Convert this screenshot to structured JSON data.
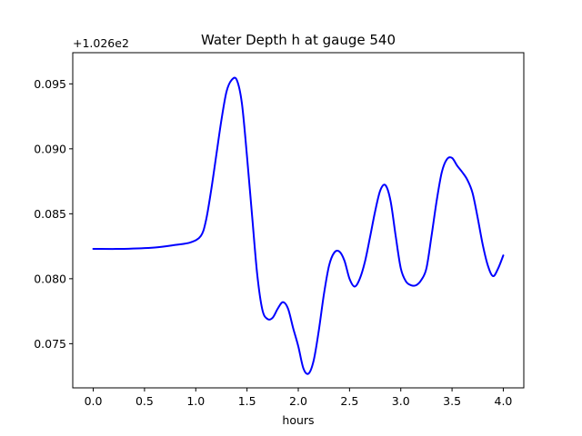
{
  "chart_data": {
    "type": "line",
    "title": "Water Depth h at gauge 540",
    "xlabel": "hours",
    "ylabel": "",
    "y_offset_label": "+1.026e2",
    "y_offset": 102.6,
    "xlim": [
      -0.2,
      4.2
    ],
    "ylim": [
      0.0716,
      0.0974
    ],
    "x_ticks": [
      0.0,
      0.5,
      1.0,
      1.5,
      2.0,
      2.5,
      3.0,
      3.5,
      4.0
    ],
    "x_tick_labels": [
      "0.0",
      "0.5",
      "1.0",
      "1.5",
      "2.0",
      "2.5",
      "3.0",
      "3.5",
      "4.0"
    ],
    "y_ticks": [
      0.075,
      0.08,
      0.085,
      0.09,
      0.095
    ],
    "y_tick_labels": [
      "0.075",
      "0.080",
      "0.085",
      "0.090",
      "0.095"
    ],
    "grid": false,
    "series": [
      {
        "color": "#0000ff",
        "x": [
          0.0,
          0.3,
          0.6,
          0.8,
          0.95,
          1.05,
          1.1,
          1.15,
          1.2,
          1.25,
          1.3,
          1.35,
          1.4,
          1.45,
          1.5,
          1.55,
          1.6,
          1.65,
          1.7,
          1.75,
          1.8,
          1.85,
          1.9,
          1.95,
          2.0,
          2.05,
          2.1,
          2.15,
          2.2,
          2.25,
          2.3,
          2.35,
          2.4,
          2.45,
          2.5,
          2.55,
          2.6,
          2.65,
          2.7,
          2.75,
          2.8,
          2.85,
          2.9,
          2.95,
          3.0,
          3.05,
          3.1,
          3.15,
          3.2,
          3.25,
          3.3,
          3.35,
          3.4,
          3.45,
          3.5,
          3.55,
          3.6,
          3.65,
          3.7,
          3.75,
          3.8,
          3.85,
          3.9,
          3.95,
          4.0
        ],
        "values": [
          0.0823,
          0.0823,
          0.0824,
          0.0826,
          0.0828,
          0.0833,
          0.0845,
          0.0868,
          0.0895,
          0.0922,
          0.0944,
          0.0953,
          0.0953,
          0.0935,
          0.0894,
          0.0848,
          0.0803,
          0.0776,
          0.0769,
          0.077,
          0.0777,
          0.0782,
          0.0777,
          0.0762,
          0.0748,
          0.0731,
          0.0727,
          0.0737,
          0.076,
          0.0788,
          0.081,
          0.082,
          0.0821,
          0.0814,
          0.08,
          0.0794,
          0.08,
          0.0813,
          0.0832,
          0.0852,
          0.0868,
          0.0872,
          0.086,
          0.0833,
          0.0808,
          0.0798,
          0.0795,
          0.0795,
          0.0799,
          0.0808,
          0.0833,
          0.086,
          0.0882,
          0.0892,
          0.0893,
          0.0887,
          0.0882,
          0.0876,
          0.0866,
          0.0847,
          0.0826,
          0.081,
          0.0802,
          0.0808,
          0.0818
        ]
      }
    ]
  }
}
